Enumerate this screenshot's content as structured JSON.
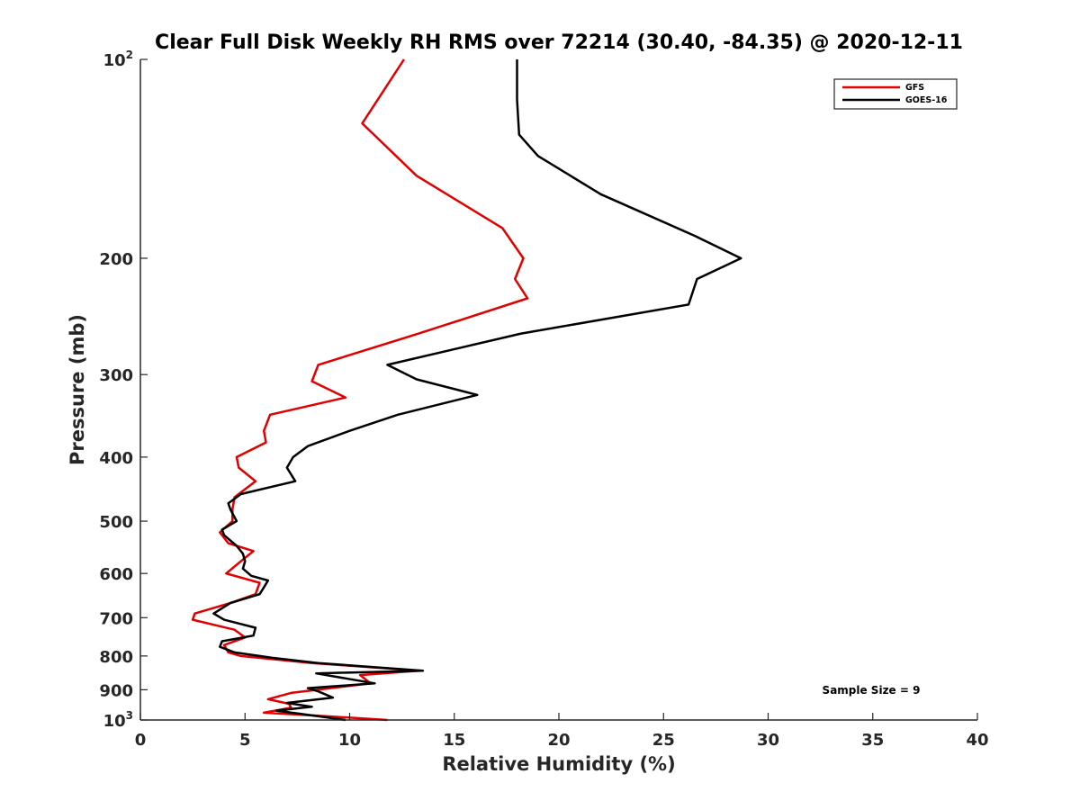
{
  "chart_data": {
    "type": "line",
    "title": "Clear Full Disk Weekly RH RMS over 72214 (30.40, -84.35) @ 2020-12-11",
    "xlabel": "Relative Humidity (%)",
    "ylabel": "Pressure (mb)",
    "xlim": [
      0,
      40
    ],
    "ylim": [
      100,
      1000
    ],
    "yscale": "log",
    "y_direction": "reverse",
    "grid": false,
    "legend_position": "top-right",
    "x_ticks": [
      0,
      5,
      10,
      15,
      20,
      25,
      30,
      35,
      40
    ],
    "y_ticks": [
      {
        "value": 100,
        "base": "10",
        "exp": "2"
      },
      {
        "value": 200,
        "label": "200"
      },
      {
        "value": 300,
        "label": "300"
      },
      {
        "value": 400,
        "label": "400"
      },
      {
        "value": 500,
        "label": "500"
      },
      {
        "value": 600,
        "label": "600"
      },
      {
        "value": 700,
        "label": "700"
      },
      {
        "value": 800,
        "label": "800"
      },
      {
        "value": 900,
        "label": "900"
      },
      {
        "value": 1000,
        "base": "10",
        "exp": "3"
      }
    ],
    "annotation": "Sample Size = 9",
    "series": [
      {
        "name": "GFS",
        "color": "#e00000",
        "points": [
          [
            12.6,
            100
          ],
          [
            10.6,
            125
          ],
          [
            13.2,
            150
          ],
          [
            17.3,
            180
          ],
          [
            18.3,
            200
          ],
          [
            17.9,
            215
          ],
          [
            18.5,
            230
          ],
          [
            13.3,
            260
          ],
          [
            8.5,
            290
          ],
          [
            8.2,
            307
          ],
          [
            9.8,
            325
          ],
          [
            6.2,
            345
          ],
          [
            5.9,
            365
          ],
          [
            6.0,
            380
          ],
          [
            4.6,
            400
          ],
          [
            4.7,
            415
          ],
          [
            5.5,
            435
          ],
          [
            4.5,
            460
          ],
          [
            4.4,
            480
          ],
          [
            4.4,
            500
          ],
          [
            3.8,
            520
          ],
          [
            4.2,
            540
          ],
          [
            5.4,
            555
          ],
          [
            4.8,
            575
          ],
          [
            4.1,
            600
          ],
          [
            5.7,
            620
          ],
          [
            5.5,
            645
          ],
          [
            4.3,
            665
          ],
          [
            2.6,
            690
          ],
          [
            2.5,
            705
          ],
          [
            4.5,
            730
          ],
          [
            5.0,
            750
          ],
          [
            4.0,
            770
          ],
          [
            4.2,
            790
          ],
          [
            4.8,
            800
          ],
          [
            8.2,
            820
          ],
          [
            13.3,
            842
          ],
          [
            10.5,
            855
          ],
          [
            11.0,
            880
          ],
          [
            7.2,
            910
          ],
          [
            6.1,
            930
          ],
          [
            7.1,
            945
          ],
          [
            7.2,
            958
          ],
          [
            5.9,
            975
          ],
          [
            8.5,
            985
          ],
          [
            11.8,
            1000
          ]
        ]
      },
      {
        "name": "GOES-16",
        "color": "#000000",
        "points": [
          [
            18.0,
            100
          ],
          [
            18.0,
            115
          ],
          [
            18.1,
            130
          ],
          [
            19.0,
            140
          ],
          [
            22.0,
            160
          ],
          [
            26.5,
            185
          ],
          [
            28.7,
            200
          ],
          [
            26.6,
            215
          ],
          [
            26.2,
            235
          ],
          [
            18.2,
            260
          ],
          [
            11.8,
            290
          ],
          [
            13.2,
            305
          ],
          [
            16.1,
            322
          ],
          [
            12.3,
            345
          ],
          [
            10.0,
            365
          ],
          [
            8.0,
            385
          ],
          [
            7.3,
            400
          ],
          [
            7.0,
            415
          ],
          [
            7.4,
            435
          ],
          [
            4.8,
            455
          ],
          [
            4.2,
            470
          ],
          [
            4.3,
            480
          ],
          [
            4.6,
            500
          ],
          [
            3.9,
            515
          ],
          [
            4.0,
            525
          ],
          [
            4.6,
            545
          ],
          [
            4.9,
            560
          ],
          [
            5.0,
            575
          ],
          [
            4.9,
            590
          ],
          [
            5.3,
            605
          ],
          [
            6.1,
            615
          ],
          [
            5.9,
            630
          ],
          [
            5.7,
            645
          ],
          [
            4.3,
            665
          ],
          [
            3.5,
            690
          ],
          [
            4.0,
            705
          ],
          [
            5.5,
            725
          ],
          [
            5.4,
            745
          ],
          [
            3.9,
            760
          ],
          [
            3.8,
            775
          ],
          [
            4.5,
            790
          ],
          [
            6.3,
            805
          ],
          [
            8.5,
            820
          ],
          [
            13.5,
            842
          ],
          [
            8.4,
            850
          ],
          [
            11.2,
            880
          ],
          [
            8.0,
            895
          ],
          [
            8.5,
            905
          ],
          [
            9.2,
            925
          ],
          [
            7.0,
            942
          ],
          [
            8.2,
            955
          ],
          [
            6.5,
            968
          ],
          [
            7.8,
            980
          ],
          [
            9.8,
            1000
          ]
        ]
      }
    ]
  }
}
